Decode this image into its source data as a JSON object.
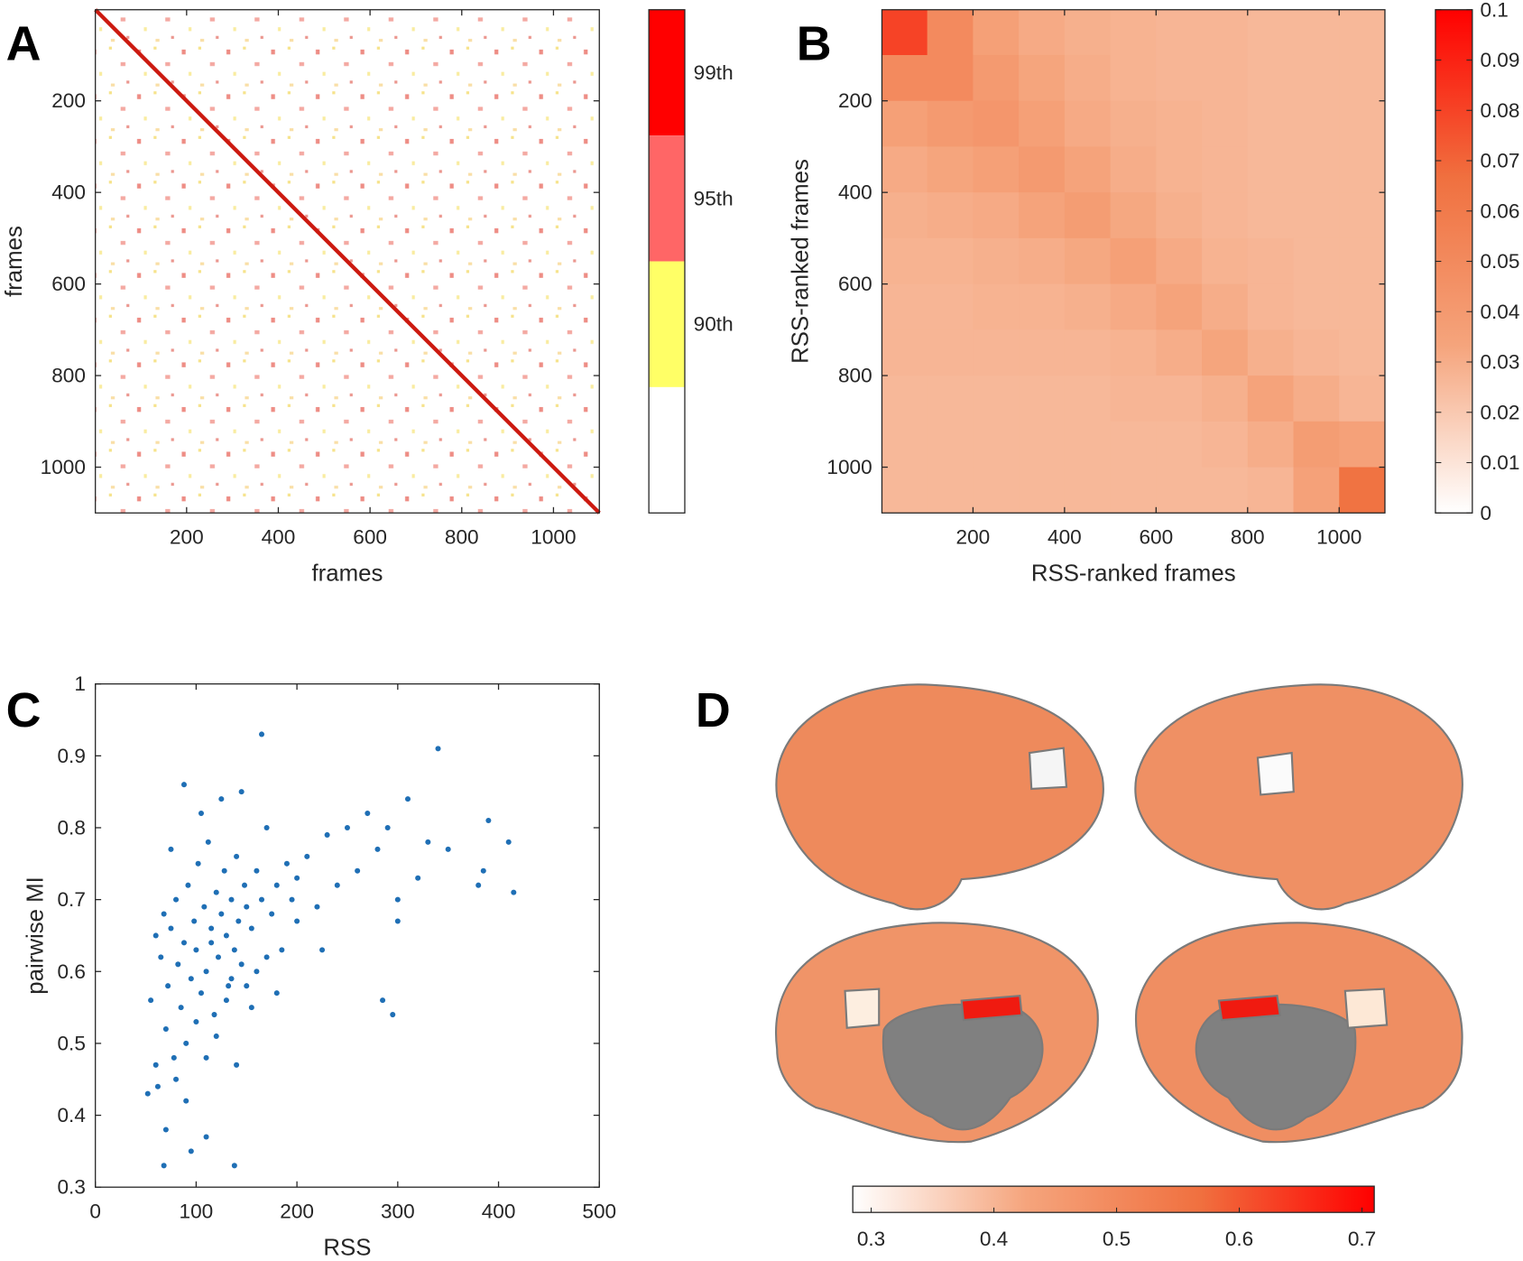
{
  "chart_data": [
    {
      "type": "categorical-heatmap",
      "panel": "A",
      "xlabel": "frames",
      "ylabel": "frames",
      "xlim": [
        1,
        1100
      ],
      "xticks": [
        200,
        400,
        600,
        800,
        1000
      ],
      "ylim": [
        1,
        1100
      ],
      "yticks": [
        200,
        400,
        600,
        800,
        1000
      ],
      "colorbar": {
        "labels": [
          "99th",
          "95th",
          "90th"
        ],
        "colors": [
          "#ff0000",
          "#ff6666",
          "#ffff66",
          "#ffffff"
        ]
      }
    },
    {
      "type": "heatmap",
      "panel": "B",
      "xlabel": "RSS-ranked frames",
      "ylabel": "RSS-ranked frames",
      "xlim": [
        1,
        1100
      ],
      "xticks": [
        200,
        400,
        600,
        800,
        1000
      ],
      "ylim": [
        1,
        1100
      ],
      "yticks": [
        200,
        400,
        600,
        800,
        1000
      ],
      "xbins": [
        0,
        100,
        200,
        300,
        400,
        500,
        600,
        700,
        800,
        900,
        1000,
        1100
      ],
      "ybins": [
        0,
        100,
        200,
        300,
        400,
        500,
        600,
        700,
        800,
        900,
        1000,
        1100
      ],
      "z": [
        [
          0.08,
          0.05,
          0.036,
          0.031,
          0.029,
          0.028,
          0.027,
          0.027,
          0.026,
          0.026,
          0.026
        ],
        [
          0.05,
          0.05,
          0.04,
          0.033,
          0.03,
          0.028,
          0.027,
          0.027,
          0.026,
          0.026,
          0.026
        ],
        [
          0.036,
          0.04,
          0.042,
          0.036,
          0.031,
          0.029,
          0.028,
          0.027,
          0.026,
          0.026,
          0.026
        ],
        [
          0.031,
          0.033,
          0.036,
          0.04,
          0.034,
          0.03,
          0.028,
          0.027,
          0.026,
          0.026,
          0.026
        ],
        [
          0.029,
          0.03,
          0.031,
          0.034,
          0.038,
          0.032,
          0.029,
          0.027,
          0.026,
          0.026,
          0.026
        ],
        [
          0.028,
          0.028,
          0.029,
          0.03,
          0.032,
          0.036,
          0.031,
          0.028,
          0.027,
          0.026,
          0.026
        ],
        [
          0.027,
          0.027,
          0.028,
          0.028,
          0.029,
          0.031,
          0.034,
          0.03,
          0.027,
          0.026,
          0.026
        ],
        [
          0.027,
          0.027,
          0.027,
          0.027,
          0.027,
          0.028,
          0.03,
          0.033,
          0.029,
          0.027,
          0.026
        ],
        [
          0.026,
          0.026,
          0.026,
          0.026,
          0.026,
          0.027,
          0.027,
          0.029,
          0.034,
          0.03,
          0.027
        ],
        [
          0.026,
          0.026,
          0.026,
          0.026,
          0.026,
          0.026,
          0.026,
          0.027,
          0.03,
          0.038,
          0.035
        ],
        [
          0.026,
          0.026,
          0.026,
          0.026,
          0.026,
          0.026,
          0.026,
          0.026,
          0.027,
          0.035,
          0.065
        ]
      ],
      "clim": [
        0,
        0.1
      ],
      "colormap": [
        "#ffffff",
        "#f5a47c",
        "#f0703f",
        "#ff0000"
      ],
      "cticks": [
        0,
        0.01,
        0.02,
        0.03,
        0.04,
        0.05,
        0.06,
        0.07,
        0.08,
        0.09,
        0.1
      ]
    },
    {
      "type": "scatter",
      "panel": "C",
      "xlabel": "RSS",
      "ylabel": "pairwise MI",
      "color": "#1f6fb5",
      "xlim": [
        0,
        500
      ],
      "xticks": [
        0,
        100,
        200,
        300,
        400,
        500
      ],
      "ylim": [
        0.3,
        1
      ],
      "yticks": [
        0.3,
        0.4,
        0.5,
        0.6,
        0.7,
        0.8,
        0.9,
        1
      ],
      "x": [
        55,
        60,
        62,
        65,
        68,
        70,
        72,
        75,
        78,
        80,
        82,
        85,
        88,
        90,
        92,
        95,
        98,
        100,
        102,
        105,
        108,
        110,
        112,
        115,
        118,
        120,
        122,
        125,
        128,
        130,
        132,
        135,
        138,
        140,
        142,
        145,
        148,
        150,
        155,
        160,
        165,
        170,
        175,
        180,
        185,
        190,
        195,
        200,
        210,
        220,
        230,
        240,
        250,
        260,
        270,
        280,
        290,
        300,
        310,
        320,
        330,
        340,
        350,
        380,
        385,
        390,
        410,
        415,
        60,
        70,
        80,
        90,
        100,
        110,
        120,
        130,
        140,
        150,
        160,
        170,
        180,
        200,
        225,
        300,
        285,
        295,
        68,
        95,
        110,
        138,
        165,
        88,
        105,
        125,
        145,
        75,
        115,
        135,
        155,
        52
      ],
      "y": [
        0.56,
        0.65,
        0.44,
        0.62,
        0.68,
        0.52,
        0.58,
        0.66,
        0.48,
        0.7,
        0.61,
        0.55,
        0.64,
        0.42,
        0.72,
        0.59,
        0.67,
        0.63,
        0.75,
        0.57,
        0.69,
        0.6,
        0.78,
        0.66,
        0.54,
        0.71,
        0.62,
        0.68,
        0.74,
        0.65,
        0.58,
        0.7,
        0.63,
        0.76,
        0.67,
        0.61,
        0.72,
        0.69,
        0.66,
        0.74,
        0.7,
        0.8,
        0.68,
        0.72,
        0.63,
        0.75,
        0.7,
        0.73,
        0.76,
        0.69,
        0.79,
        0.72,
        0.8,
        0.74,
        0.82,
        0.77,
        0.8,
        0.7,
        0.84,
        0.73,
        0.78,
        0.91,
        0.77,
        0.72,
        0.74,
        0.81,
        0.78,
        0.71,
        0.47,
        0.38,
        0.45,
        0.5,
        0.53,
        0.48,
        0.51,
        0.56,
        0.47,
        0.58,
        0.6,
        0.62,
        0.57,
        0.67,
        0.63,
        0.67,
        0.56,
        0.54,
        0.33,
        0.35,
        0.37,
        0.33,
        0.93,
        0.86,
        0.82,
        0.84,
        0.85,
        0.77,
        0.64,
        0.59,
        0.55,
        0.43
      ]
    },
    {
      "type": "surface",
      "panel": "D",
      "clim": [
        0.285,
        0.71
      ],
      "colormap": [
        "#ffffff",
        "#f5a47c",
        "#f0703f",
        "#ff0000"
      ],
      "cticks": [
        0.3,
        0.4,
        0.5,
        0.6,
        0.7
      ]
    }
  ]
}
